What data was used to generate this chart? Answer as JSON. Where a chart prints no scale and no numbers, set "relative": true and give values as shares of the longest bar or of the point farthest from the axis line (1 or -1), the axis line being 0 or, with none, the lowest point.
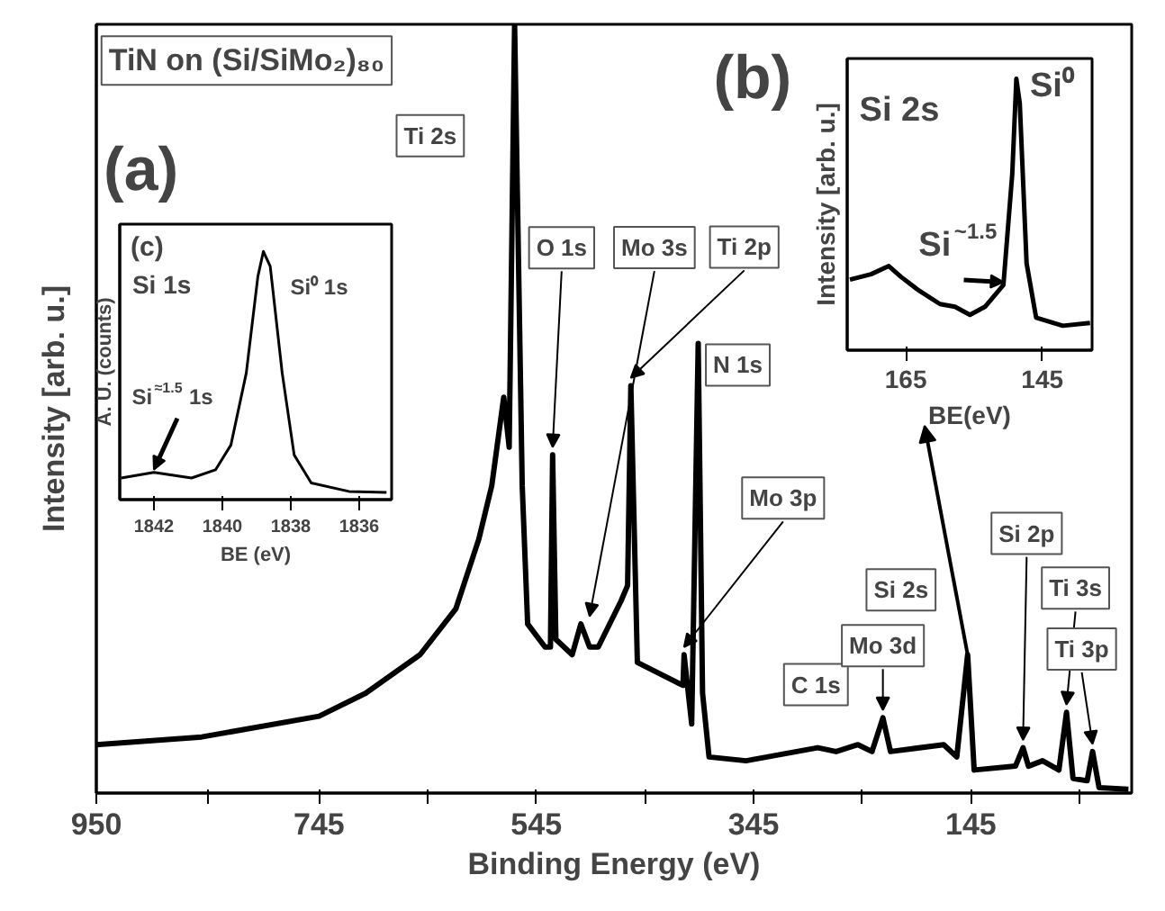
{
  "chart_data": [
    {
      "type": "line",
      "title": "TiN on (Si/SiMo₂)₈₀",
      "xlabel": "Binding Energy (eV)",
      "ylabel": "Intensity [arb. u.]",
      "relative": true,
      "color": "#000000",
      "tick_labels": "x",
      "x": [
        950,
        853,
        745,
        702,
        652,
        619,
        598,
        586,
        575,
        570,
        565,
        558,
        553,
        537,
        532,
        530,
        527,
        512,
        504,
        496,
        488,
        467,
        461,
        458,
        452,
        410,
        409,
        402,
        396,
        392,
        386,
        352,
        286,
        269,
        249,
        236,
        226,
        219,
        170,
        158,
        148,
        142,
        104,
        97,
        92,
        79,
        64,
        57,
        51,
        38,
        33,
        27,
        0
      ],
      "values": [
        0.063,
        0.073,
        0.1,
        0.13,
        0.18,
        0.24,
        0.33,
        0.4,
        0.515,
        0.45,
        1.0,
        0.4,
        0.22,
        0.19,
        0.19,
        0.44,
        0.2,
        0.18,
        0.22,
        0.19,
        0.19,
        0.25,
        0.27,
        0.53,
        0.17,
        0.14,
        0.18,
        0.09,
        0.585,
        0.13,
        0.047,
        0.042,
        0.059,
        0.054,
        0.063,
        0.054,
        0.098,
        0.054,
        0.063,
        0.047,
        0.18,
        0.03,
        0.035,
        0.059,
        0.035,
        0.042,
        0.03,
        0.105,
        0.019,
        0.016,
        0.054,
        0.007,
        0.005
      ],
      "xlim": [
        950,
        -3
      ],
      "xticks": [
        950,
        {
          "value": 847.5,
          "label": null
        },
        745,
        {
          "value": 645,
          "label": null
        },
        545,
        {
          "value": 445,
          "label": null
        },
        345,
        {
          "value": 245,
          "label": null
        },
        145,
        {
          "value": 45,
          "label": null
        }
      ],
      "annotations": [
        "(a)",
        "Ti 2s",
        "(b)",
        {
          "text": "O 1s",
          "x": 530,
          "y": 0.44
        },
        {
          "text": "Mo 3s",
          "x": 496,
          "y": 0.22
        },
        {
          "text": "Ti 2p",
          "x": 458,
          "y": 0.53
        },
        {
          "text": "N 1s",
          "x": 396,
          "y": 0.585
        },
        {
          "text": "Mo 3p",
          "x": 409,
          "y": 0.18
        },
        {
          "text": "C 1s",
          "x": 286,
          "y": 0.059
        },
        {
          "text": "Mo 3d",
          "x": 226,
          "y": 0.098
        },
        {
          "text": "Si 2p",
          "x": 97,
          "y": 0.059
        },
        {
          "text": "Si 2s",
          "x": 148,
          "y": 0.18
        },
        {
          "text": "Ti 3s",
          "x": 57,
          "y": 0.105
        },
        {
          "text": "Ti 3p",
          "x": 33,
          "y": 0.054
        }
      ]
    },
    {
      "type": "line",
      "title": "Si 2s",
      "xlabel": "BE(eV)",
      "ylabel": "Intensity [arb. u.]",
      "relative": true,
      "color": "#000000",
      "tick_labels": "x",
      "x": [
        173.2,
        170.1,
        167.5,
        165.7,
        163.1,
        160,
        157.8,
        155.6,
        153.4,
        150.7,
        149.4,
        148.8,
        148.3,
        147.3,
        145.9,
        142,
        138
      ],
      "values": [
        0.26,
        0.28,
        0.31,
        0.27,
        0.22,
        0.17,
        0.16,
        0.13,
        0.16,
        0.24,
        0.65,
        1.0,
        0.91,
        0.32,
        0.12,
        0.09,
        0.1
      ],
      "xlim": [
        173.6,
        137.7
      ],
      "xticks": [
        165,
        145
      ],
      "annotations": [
        {
          "text": "Si⁰",
          "x": 148.8,
          "y": 1.0
        },
        {
          "text": "Si$^{~1.5}$",
          "x": 150.7,
          "y": 0.24
        }
      ]
    },
    {
      "type": "line",
      "title": "Si 1s",
      "xlabel": "BE (eV)",
      "ylabel": "A. U. (counts)",
      "relative": true,
      "color": "#000000",
      "tick_labels": "x",
      "x": [
        1842.96,
        1842,
        1840.9,
        1840.2,
        1839.75,
        1839.3,
        1838.96,
        1838.8,
        1838.6,
        1838.25,
        1837.9,
        1837.4,
        1836.3,
        1835.2
      ],
      "values": [
        0.087,
        0.11,
        0.087,
        0.12,
        0.22,
        0.51,
        0.9,
        1.0,
        0.94,
        0.51,
        0.18,
        0.067,
        0.033,
        0.029
      ],
      "xlim": [
        1843.0,
        1835.05
      ],
      "xticks": [
        1842,
        1840,
        1838,
        1836
      ],
      "annotations": [
        "(c)",
        {
          "text": "Si⁰ 1s",
          "x": 1838.8,
          "y": 1.0
        },
        {
          "text": "Si$^{≈1.5}$ 1s",
          "x": 1842,
          "y": 0.11
        }
      ]
    }
  ]
}
